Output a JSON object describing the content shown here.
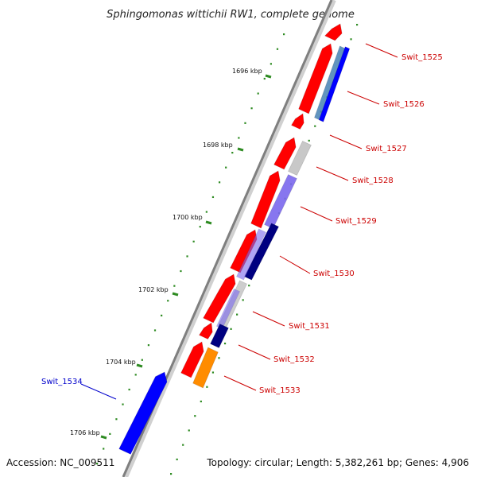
{
  "title": "Sphingomonas wittichii RW1, complete genome",
  "footer": {
    "accession": "Accession: NC_009511",
    "summary": "Topology: circular; Length: 5,382,261 bp; Genes: 4,906"
  },
  "colors": {
    "forward_cds": "#ff0000",
    "reverse_cds": "#0000ff",
    "label_forward": "#cc0000",
    "label_reverse": "#0000cc",
    "backbone": "#7f7f7f",
    "tick": "#2e8b22",
    "gray_feature": "#c8c8c8",
    "steel_feature": "#4682b4",
    "lilac_feature": "#7b68ee",
    "navy_feature": "#000080",
    "orange_feature": "#ff8c00"
  },
  "kbp_ticks": [
    {
      "label": "1696 kbp"
    },
    {
      "label": "1698 kbp"
    },
    {
      "label": "1700 kbp"
    },
    {
      "label": "1702 kbp"
    },
    {
      "label": "1704 kbp"
    },
    {
      "label": "1706 kbp"
    }
  ],
  "gene_labels": [
    {
      "label": "Swit_1525",
      "strand": "forward"
    },
    {
      "label": "Swit_1526",
      "strand": "forward"
    },
    {
      "label": "Swit_1527",
      "strand": "forward"
    },
    {
      "label": "Swit_1528",
      "strand": "forward"
    },
    {
      "label": "Swit_1529",
      "strand": "forward"
    },
    {
      "label": "Swit_1530",
      "strand": "forward"
    },
    {
      "label": "Swit_1531",
      "strand": "forward"
    },
    {
      "label": "Swit_1532",
      "strand": "forward"
    },
    {
      "label": "Swit_1533",
      "strand": "forward"
    },
    {
      "label": "Swit_1534",
      "strand": "reverse"
    }
  ]
}
